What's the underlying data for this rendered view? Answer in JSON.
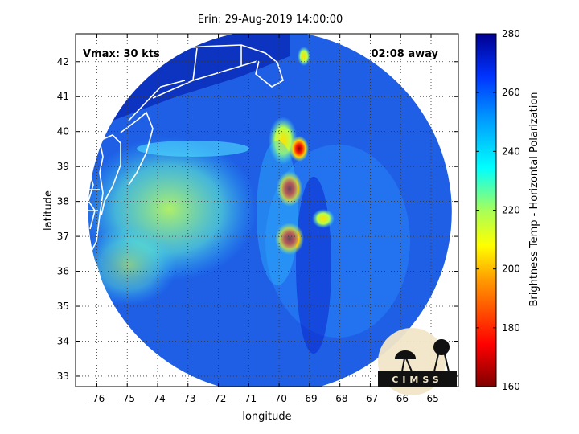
{
  "title": "Erin: 29-Aug-2019 14:00:00",
  "vmax_label": "Vmax: 30 kts",
  "time_away": "02:08 away",
  "xlabel": "longitude",
  "ylabel": "latitude",
  "colorbar_label": "Brightness Temp - Horizontal Polarization",
  "logo_text": "CIMSS",
  "colors": {
    "cold_core": "#8b0000",
    "ocean_background": "#1e5fe6",
    "coastline": "#ffffff"
  },
  "chart_data": {
    "type": "heatmap",
    "x_ticks": [
      "-76",
      "-75",
      "-74",
      "-73",
      "-72",
      "-71",
      "-70",
      "-69",
      "-68",
      "-67",
      "-66",
      "-65"
    ],
    "y_ticks": [
      "33",
      "34",
      "35",
      "36",
      "37",
      "38",
      "39",
      "40",
      "41",
      "42"
    ],
    "xlim": [
      -76.7,
      -64.1
    ],
    "ylim": [
      32.7,
      42.8
    ],
    "colorbar": {
      "min": 160,
      "max": 280,
      "ticks": [
        "160",
        "180",
        "200",
        "220",
        "240",
        "260",
        "280"
      ]
    },
    "swath_center": [
      -70.3,
      37.7
    ],
    "swath_radius_deg": 5.2,
    "background_temp": 258,
    "features": [
      {
        "lon": -69.6,
        "lat": 38.3,
        "temp": 170
      },
      {
        "lon": -69.5,
        "lat": 37.0,
        "temp": 170
      },
      {
        "lon": -69.3,
        "lat": 39.4,
        "temp": 195
      },
      {
        "lon": -69.8,
        "lat": 39.6,
        "temp": 215
      },
      {
        "lon": -68.6,
        "lat": 37.4,
        "temp": 210
      },
      {
        "lon": -69.0,
        "lat": 42.1,
        "temp": 205
      },
      {
        "lon": -74.0,
        "lat": 39.2,
        "temp": 225
      },
      {
        "lon": -74.8,
        "lat": 36.3,
        "temp": 230
      }
    ]
  }
}
